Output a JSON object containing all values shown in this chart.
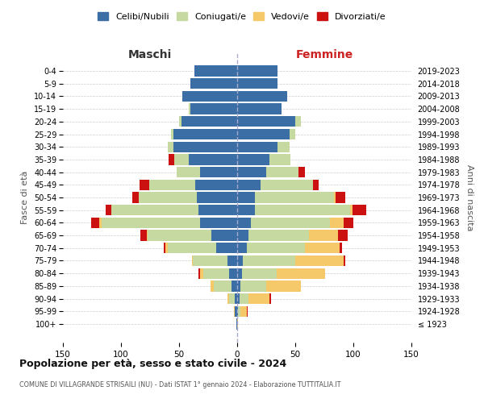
{
  "age_groups": [
    "100+",
    "95-99",
    "90-94",
    "85-89",
    "80-84",
    "75-79",
    "70-74",
    "65-69",
    "60-64",
    "55-59",
    "50-54",
    "45-49",
    "40-44",
    "35-39",
    "30-34",
    "25-29",
    "20-24",
    "15-19",
    "10-14",
    "5-9",
    "0-4"
  ],
  "birth_years": [
    "≤ 1923",
    "1924-1928",
    "1929-1933",
    "1934-1938",
    "1939-1943",
    "1944-1948",
    "1949-1953",
    "1954-1958",
    "1959-1963",
    "1964-1968",
    "1969-1973",
    "1974-1978",
    "1979-1983",
    "1984-1988",
    "1989-1993",
    "1994-1998",
    "1999-2003",
    "2004-2008",
    "2009-2013",
    "2014-2018",
    "2019-2023"
  ],
  "colors": {
    "celibe": "#3a6ea5",
    "coniugato": "#c5d9a0",
    "vedovo": "#f5c96a",
    "divorziato": "#cc1111"
  },
  "male": {
    "celibe": [
      1,
      2,
      2,
      5,
      7,
      8,
      18,
      22,
      32,
      33,
      35,
      36,
      32,
      42,
      55,
      55,
      48,
      40,
      47,
      40,
      37
    ],
    "coniugato": [
      0,
      0,
      5,
      15,
      22,
      30,
      42,
      55,
      85,
      75,
      50,
      40,
      20,
      12,
      5,
      2,
      2,
      2,
      0,
      0,
      0
    ],
    "vedovo": [
      0,
      1,
      1,
      3,
      3,
      1,
      2,
      1,
      2,
      0,
      0,
      0,
      0,
      0,
      0,
      0,
      0,
      0,
      0,
      0,
      0
    ],
    "divorziato": [
      0,
      0,
      0,
      0,
      1,
      0,
      1,
      5,
      7,
      5,
      5,
      8,
      0,
      5,
      0,
      0,
      0,
      0,
      0,
      0,
      0
    ]
  },
  "female": {
    "nubile": [
      0,
      1,
      2,
      3,
      4,
      5,
      8,
      10,
      12,
      15,
      15,
      20,
      25,
      28,
      35,
      45,
      50,
      38,
      43,
      35,
      35
    ],
    "coniugata": [
      0,
      2,
      8,
      22,
      30,
      45,
      50,
      52,
      68,
      82,
      68,
      45,
      28,
      18,
      10,
      5,
      5,
      0,
      0,
      0,
      0
    ],
    "vedova": [
      1,
      5,
      18,
      30,
      42,
      42,
      30,
      25,
      12,
      2,
      2,
      0,
      0,
      0,
      0,
      0,
      0,
      0,
      0,
      0,
      0
    ],
    "divorziata": [
      0,
      1,
      1,
      0,
      0,
      1,
      2,
      8,
      8,
      12,
      8,
      5,
      5,
      0,
      0,
      0,
      0,
      0,
      0,
      0,
      0
    ]
  },
  "title": "Popolazione per età, sesso e stato civile - 2024",
  "subtitle": "COMUNE DI VILLAGRANDE STRISAILI (NU) - Dati ISTAT 1° gennaio 2024 - Elaborazione TUTTITALIA.IT",
  "xlabel_left": "Maschi",
  "xlabel_right": "Femmine",
  "ylabel_left": "Fasce di età",
  "ylabel_right": "Anni di nascita",
  "xlim": 150,
  "legend_labels": [
    "Celibi/Nubili",
    "Coniugati/e",
    "Vedovi/e",
    "Divorziati/e"
  ],
  "bg_color": "#ffffff",
  "grid_color": "#cccccc"
}
